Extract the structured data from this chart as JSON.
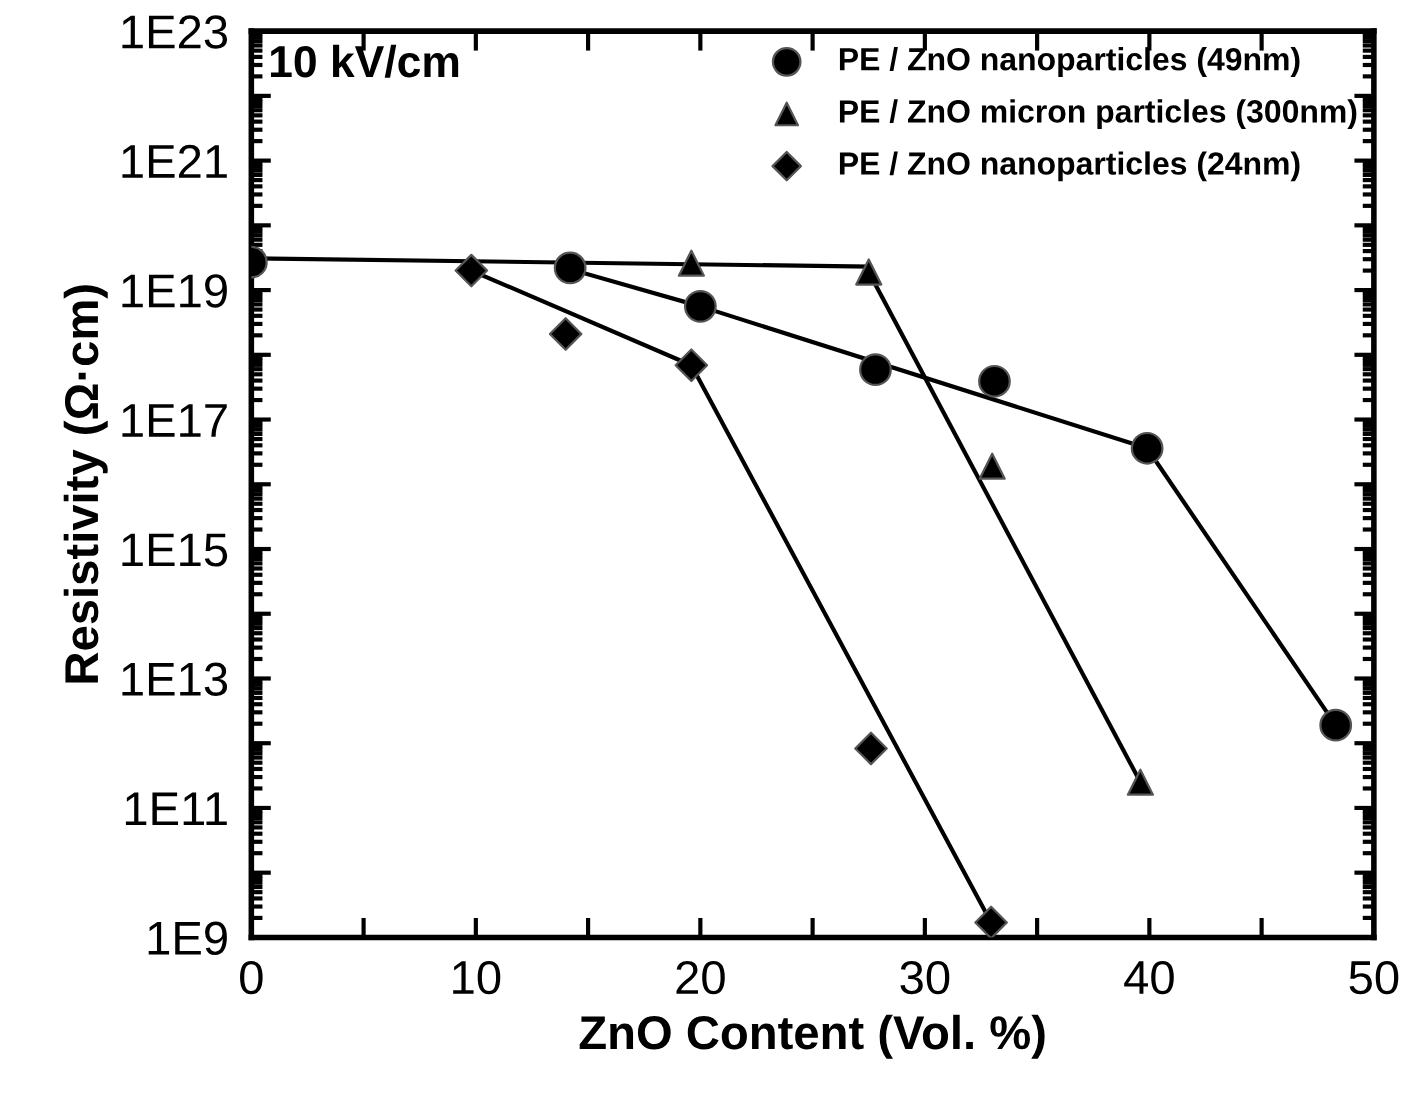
{
  "chart_data": {
    "type": "scatter",
    "xlabel": "ZnO Content (Vol. %)",
    "ylabel": "Resistivity (Ω·cm)",
    "log": "y",
    "annotations": [
      "10 kV/cm"
    ],
    "xlim": [
      0,
      50
    ],
    "xticks": [
      0,
      {
        "value": 5,
        "label": null
      },
      10,
      {
        "value": 15,
        "label": null
      },
      20,
      {
        "value": 25,
        "label": null
      },
      30,
      {
        "value": 35,
        "label": null
      },
      40,
      {
        "value": 45,
        "label": null
      },
      50
    ],
    "ylim": [
      1000000000.0,
      1e+23
    ],
    "yticks": [
      {
        "value": 1000000000.0,
        "label": "1E9"
      },
      {
        "value": 10000000000.0,
        "label": null
      },
      {
        "value": 100000000000.0,
        "label": "1E11"
      },
      {
        "value": 1000000000000.0,
        "label": null
      },
      {
        "value": 10000000000000.0,
        "label": "1E13"
      },
      {
        "value": 100000000000000.0,
        "label": null
      },
      {
        "value": 1000000000000000.0,
        "label": "1E15"
      },
      {
        "value": 1e+16,
        "label": null
      },
      {
        "value": 1e+17,
        "label": "1E17"
      },
      {
        "value": 1e+18,
        "label": null
      },
      {
        "value": 1e+19,
        "label": "1E19"
      },
      {
        "value": 1e+20,
        "label": null
      },
      {
        "value": 1e+21,
        "label": "1E21"
      },
      {
        "value": 1e+22,
        "label": null
      },
      {
        "value": 1e+23,
        "label": "1E23"
      }
    ],
    "grid": false,
    "legend": "top right",
    "series": [
      {
        "type": "line",
        "color": "#000000",
        "marker": "none",
        "x": [
          0,
          27.5
        ],
        "values": [
          3.1e+19,
          2.3e+19
        ]
      },
      {
        "type": "line",
        "color": "#000000",
        "marker": "none",
        "x": [
          14,
          20,
          39.9,
          48.3
        ],
        "values": [
          2.2e+19,
          5.6e+18,
          3.6e+16,
          1900000000000.0
        ]
      },
      {
        "type": "line",
        "color": "#000000",
        "marker": "none",
        "x": [
          27.5,
          39.6
        ],
        "values": [
          1.9e+19,
          250000000000.0
        ]
      },
      {
        "type": "line",
        "color": "#000000",
        "marker": "none",
        "x": [
          9.8,
          19.6,
          32.95
        ],
        "values": [
          2e+19,
          6.9e+17,
          1700000000.0
        ]
      },
      {
        "name": "PE / ZnO nanoparticles (49nm)",
        "color": "#000000",
        "marker": "circle",
        "x": [
          0,
          14.2,
          20,
          27.8,
          33.1,
          39.9,
          48.3
        ],
        "values": [
          2.7e+19,
          2.2e+19,
          5.6e+18,
          5.9e+17,
          3.9e+17,
          3.6e+16,
          1900000000000.0
        ]
      },
      {
        "name": "PE / ZnO micron particles (300nm)",
        "color": "#000000",
        "marker": "triangle",
        "x": [
          19.6,
          27.5,
          33.0,
          39.6
        ],
        "values": [
          2.6e+19,
          1.9e+19,
          1.9e+16,
          250000000000.0
        ]
      },
      {
        "name": "PE / ZnO nanoparticles (24nm)",
        "color": "#000000",
        "marker": "diamond",
        "x": [
          9.8,
          14.0,
          19.6,
          27.6,
          32.95
        ],
        "values": [
          2e+19,
          2.1e+18,
          6.9e+17,
          830000000000.0,
          1700000000.0
        ]
      }
    ]
  }
}
